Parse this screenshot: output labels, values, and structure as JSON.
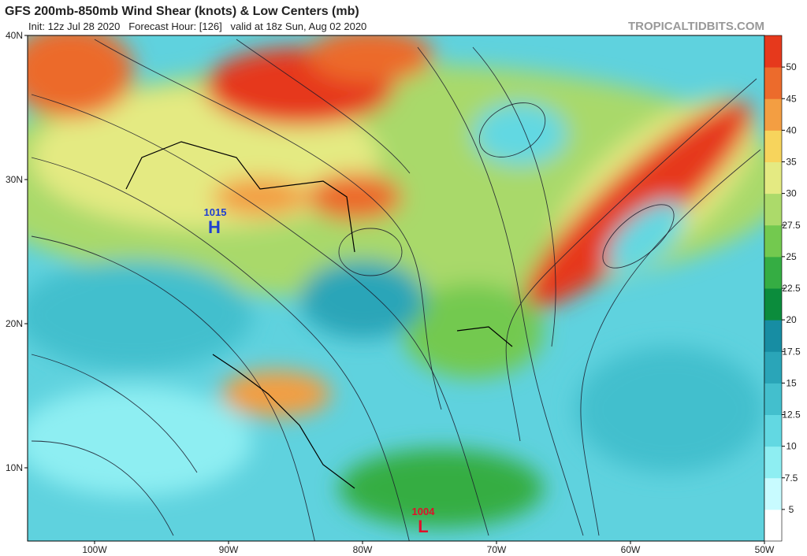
{
  "header": {
    "title": "GFS 200mb-850mb Wind Shear (knots) & Low Centers (mb)",
    "subtitle": "Init: 12z Jul 28 2020   Forecast Hour: [126]   valid at 18z Sun, Aug 02 2020",
    "source": "TROPICALTIDBITS.COM"
  },
  "axes": {
    "latitudes": [
      "40N",
      "30N",
      "20N",
      "10N"
    ],
    "longitudes": [
      "100W",
      "90W",
      "80W",
      "70W",
      "60W",
      "50W"
    ]
  },
  "colorbar": {
    "levels": [
      5,
      7.5,
      10,
      12.5,
      15,
      17.5,
      20,
      22.5,
      25,
      27.5,
      30,
      35,
      40,
      45,
      50
    ],
    "colors": [
      "#ffffff",
      "#c8fbff",
      "#8eeef2",
      "#62d8e2",
      "#43bfcd",
      "#2aa5b8",
      "#178da3",
      "#0b8c3c",
      "#35ad43",
      "#73c94f",
      "#acda6a",
      "#e4ea82",
      "#f7d45c",
      "#f39e42",
      "#ec6b2c",
      "#e6391c"
    ]
  },
  "centers": [
    {
      "symbol": "H",
      "pressure": "1015"
    },
    {
      "symbol": "L",
      "pressure": "1004"
    }
  ]
}
